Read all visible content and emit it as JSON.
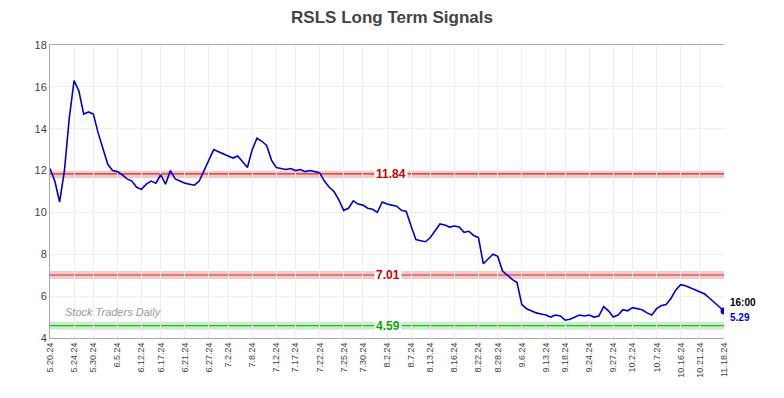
{
  "chart_data": {
    "type": "line",
    "title": "RSLS Long Term Signals",
    "color": "#0000cc",
    "grid": true,
    "ylim": [
      4,
      18
    ],
    "yticks": [
      4,
      6,
      8,
      10,
      12,
      14,
      16,
      18
    ],
    "categories": [
      "5.20.24",
      null,
      null,
      null,
      null,
      "5.24.24",
      null,
      null,
      null,
      "5.30.24",
      null,
      null,
      null,
      null,
      "6.5.24",
      null,
      null,
      null,
      null,
      "6.12.24",
      null,
      null,
      null,
      "6.17.24",
      null,
      null,
      null,
      null,
      "6.21.24",
      null,
      null,
      null,
      null,
      "6.27.24",
      null,
      null,
      null,
      "7.2.24",
      null,
      null,
      null,
      null,
      "7.8.24",
      null,
      null,
      null,
      null,
      "7.12.24",
      null,
      null,
      null,
      "7.17.24",
      null,
      null,
      null,
      null,
      "7.22.24",
      null,
      null,
      null,
      null,
      "7.25.24",
      null,
      null,
      null,
      "7.30.24",
      null,
      null,
      null,
      null,
      "8.2.24",
      null,
      null,
      null,
      null,
      "8.7.24",
      null,
      null,
      null,
      "8.13.24",
      null,
      null,
      null,
      null,
      "8.16.24",
      null,
      null,
      null,
      null,
      "8.22.24",
      null,
      null,
      null,
      "8.28.24",
      null,
      null,
      null,
      null,
      "9.6.24",
      null,
      null,
      null,
      null,
      "9.13.24",
      null,
      null,
      null,
      "9.18.24",
      null,
      null,
      null,
      null,
      "9.24.24",
      null,
      null,
      null,
      null,
      "9.27.24",
      null,
      null,
      null,
      "10.2.24",
      null,
      null,
      null,
      null,
      "10.7.24",
      null,
      null,
      null,
      null,
      "10.16.24",
      null,
      null,
      null,
      "10.21.24",
      null,
      null,
      null,
      null,
      "11.18.24"
    ],
    "values": [
      12.1,
      11.5,
      10.5,
      12.0,
      14.5,
      16.3,
      15.8,
      14.7,
      14.8,
      14.7,
      13.8,
      13.0,
      12.3,
      12.0,
      11.95,
      11.8,
      11.6,
      11.5,
      11.2,
      11.1,
      11.35,
      11.5,
      11.4,
      11.8,
      11.35,
      12.0,
      11.6,
      11.5,
      11.4,
      11.35,
      11.3,
      11.5,
      12.0,
      12.5,
      13.0,
      12.9,
      12.8,
      12.7,
      12.6,
      12.7,
      12.4,
      12.15,
      13.0,
      13.55,
      13.4,
      13.2,
      12.5,
      12.15,
      12.1,
      12.05,
      12.1,
      12.0,
      12.05,
      11.95,
      12.0,
      11.95,
      11.9,
      11.5,
      11.2,
      11.0,
      10.6,
      10.1,
      10.2,
      10.55,
      10.4,
      10.35,
      10.2,
      10.15,
      10.0,
      10.5,
      10.4,
      10.35,
      10.3,
      10.1,
      10.05,
      9.35,
      8.7,
      8.65,
      8.6,
      8.8,
      9.1,
      9.45,
      9.4,
      9.3,
      9.35,
      9.3,
      9.05,
      9.1,
      8.9,
      8.8,
      7.55,
      7.8,
      8.0,
      7.9,
      7.2,
      7.0,
      6.8,
      6.65,
      5.6,
      5.4,
      5.3,
      5.2,
      5.15,
      5.1,
      5.0,
      5.1,
      5.05,
      4.85,
      4.9,
      5.0,
      5.1,
      5.05,
      5.1,
      5.0,
      5.05,
      5.5,
      5.3,
      5.0,
      5.1,
      5.35,
      5.3,
      5.45,
      5.4,
      5.35,
      5.2,
      5.1,
      5.4,
      5.55,
      5.6,
      5.9,
      6.3,
      6.55,
      6.5,
      6.4,
      6.3,
      6.2,
      6.1,
      5.9,
      5.7,
      5.5,
      5.29
    ],
    "hlines": [
      {
        "value": 11.84,
        "label": "11.84",
        "color": "#cc0000"
      },
      {
        "value": 7.01,
        "label": "7.01",
        "color": "#cc0000"
      },
      {
        "value": 4.59,
        "label": "4.59",
        "color": "#00aa00"
      }
    ],
    "annotations": [
      {
        "text": "16:00",
        "y": 5.29
      },
      {
        "text": "5.29",
        "y": 5.29,
        "color": "#0000cc"
      },
      {
        "text": "Stock Traders Daily",
        "color": "#999999"
      }
    ]
  }
}
